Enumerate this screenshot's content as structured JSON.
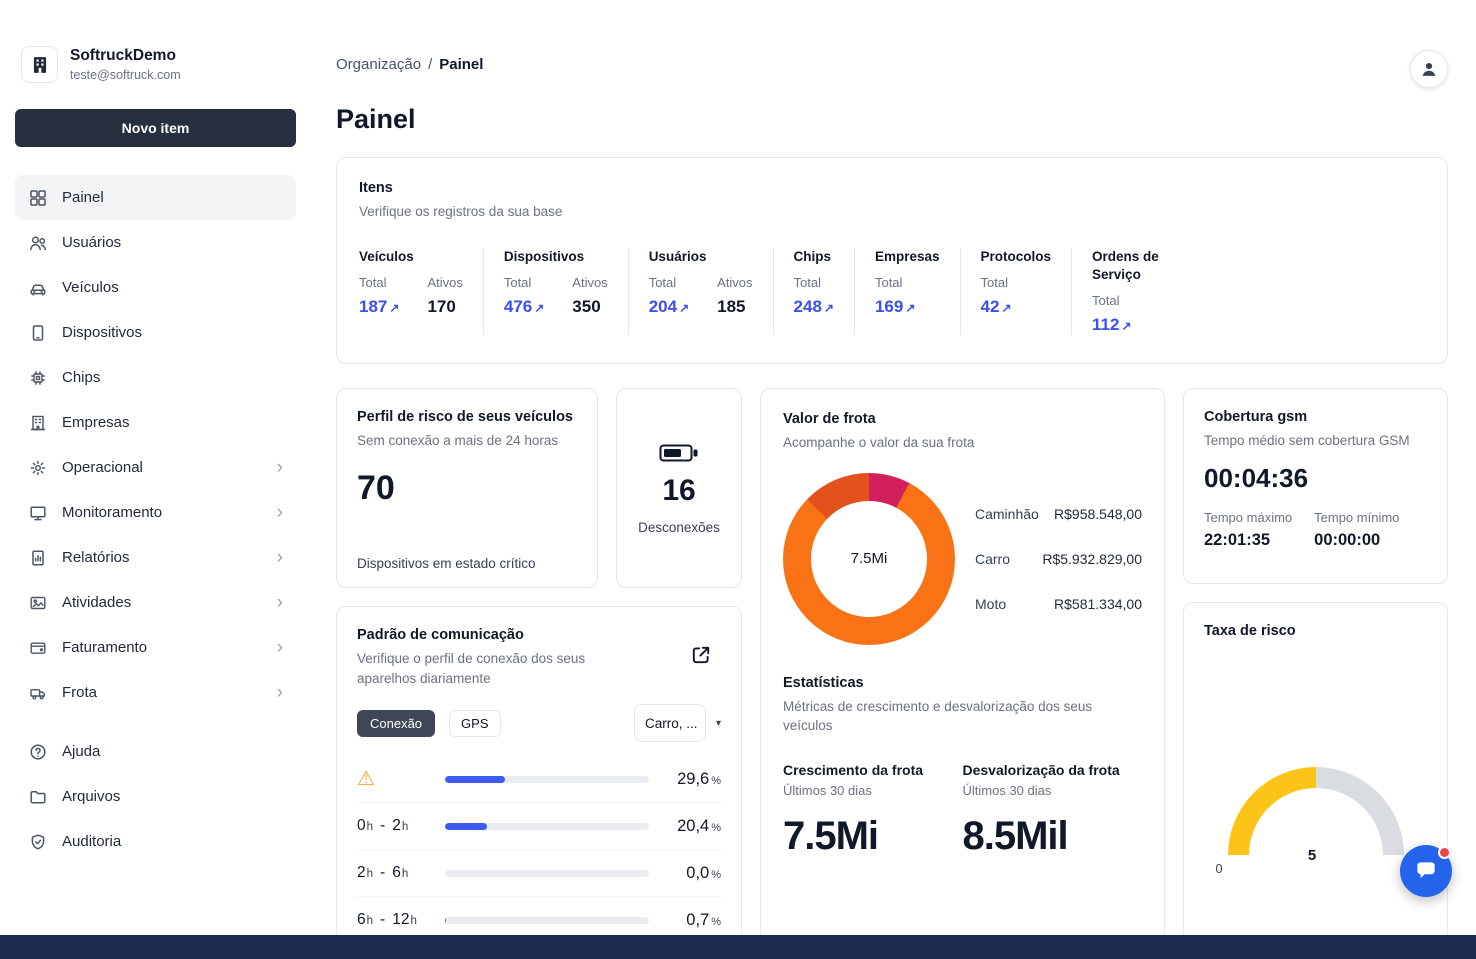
{
  "app": {
    "org_name": "SoftruckDemo",
    "org_email": "teste@softruck.com",
    "new_item_label": "Novo item"
  },
  "icons": {
    "arrow_up_right": "↗",
    "chevron_right": "›",
    "caret_down": "▾",
    "warning": "⚠"
  },
  "colors": {
    "accent_blue": "#3d4eeb",
    "bar_fill_blue": "#3d5af1",
    "button_dark": "#27303f",
    "footer_navy": "#1d2b4e",
    "chat_blue": "#2563eb",
    "warning_amber": "#f5a623"
  },
  "sidebar": {
    "items": [
      {
        "label": "Painel",
        "icon": "grid-icon",
        "selected": true
      },
      {
        "label": "Usuários",
        "icon": "users-icon"
      },
      {
        "label": "Veículos",
        "icon": "car-icon"
      },
      {
        "label": "Dispositivos",
        "icon": "device-icon"
      },
      {
        "label": "Chips",
        "icon": "chip-icon"
      },
      {
        "label": "Empresas",
        "icon": "building-icon"
      },
      {
        "label": "Operacional",
        "icon": "gear-icon",
        "chevron": true
      },
      {
        "label": "Monitoramento",
        "icon": "monitor-icon",
        "chevron": true
      },
      {
        "label": "Relatórios",
        "icon": "report-icon",
        "chevron": true
      },
      {
        "label": "Atividades",
        "icon": "image-icon",
        "chevron": true
      },
      {
        "label": "Faturamento",
        "icon": "wallet-icon",
        "chevron": true
      },
      {
        "label": "Frota",
        "icon": "truck-icon",
        "chevron": true
      },
      {
        "label": "Ajuda",
        "icon": "help-icon"
      },
      {
        "label": "Arquivos",
        "icon": "folder-icon"
      },
      {
        "label": "Auditoria",
        "icon": "shield-icon"
      }
    ]
  },
  "header": {
    "breadcrumb_parent": "Organização",
    "breadcrumb_separator": "/",
    "breadcrumb_current": "Painel",
    "title": "Painel"
  },
  "itens_card": {
    "title": "Itens",
    "subtitle": "Verifique os registros da sua base",
    "total_label": "Total",
    "ativos_label": "Ativos",
    "stats": [
      {
        "label": "Veículos",
        "total": "187",
        "ativos": "170"
      },
      {
        "label": "Dispositivos",
        "total": "476",
        "ativos": "350"
      },
      {
        "label": "Usuários",
        "total": "204",
        "ativos": "185"
      },
      {
        "label": "Chips",
        "total": "248"
      },
      {
        "label": "Empresas",
        "total": "169"
      },
      {
        "label": "Protocolos",
        "total": "42"
      },
      {
        "label": "Ordens de Serviço",
        "total": "112"
      }
    ]
  },
  "risk_card": {
    "title": "Perfil de risco de seus veículos",
    "subtitle": "Sem conexão a mais de 24 horas",
    "value": "70",
    "footer": "Dispositivos em estado crítico"
  },
  "disconnect_card": {
    "value": "16",
    "label": "Desconexões"
  },
  "fleet_value_card": {
    "title": "Valor de frota",
    "subtitle": "Acompanhe o valor da sua frota",
    "center": "7.5Mi",
    "legend": [
      {
        "label": "Caminhão",
        "value": "R$958.548,00"
      },
      {
        "label": "Carro",
        "value": "R$5.932.829,00"
      },
      {
        "label": "Moto",
        "value": "R$581.334,00"
      }
    ],
    "stats_title": "Estatísticas",
    "stats_subtitle": "Métricas de crescimento e desvalorização dos seus veículos",
    "growth": {
      "title": "Crescimento da frota",
      "period": "Últimos 30 dias",
      "value": "7.5Mi"
    },
    "devaluation": {
      "title": "Desvalorização da frota",
      "period": "Últimos 30 dias",
      "value": "8.5Mil"
    }
  },
  "gsm_card": {
    "title": "Cobertura gsm",
    "subtitle": "Tempo médio sem cobertura GSM",
    "value": "00:04:36",
    "max_label": "Tempo máximo",
    "max_value": "22:01:35",
    "min_label": "Tempo mínimo",
    "min_value": "00:00:00"
  },
  "risk_rate_card": {
    "title": "Taxa de risco",
    "value": "5",
    "min": "0",
    "max": "10"
  },
  "comm_card": {
    "title": "Padrão de comunicação",
    "subtitle": "Verifique o perfil de conexão dos seus aparelhos diariamente",
    "tabs": [
      {
        "label": "Conexão",
        "selected": true
      },
      {
        "label": "GPS",
        "selected": false
      }
    ],
    "filter_value": "Carro, ...",
    "hour_unit": "h",
    "range_separator": "-",
    "percent_unit": "%",
    "rows": [
      {
        "type": "warning",
        "percent": 29.6,
        "display": "29,6"
      },
      {
        "type": "range",
        "from": "0",
        "to": "2",
        "percent": 20.4,
        "display": "20,4"
      },
      {
        "type": "range",
        "from": "2",
        "to": "6",
        "percent": 0.0,
        "display": "0,0"
      },
      {
        "type": "range",
        "from": "6",
        "to": "12",
        "percent": 0.7,
        "display": "0,7"
      }
    ]
  },
  "chart_data": [
    {
      "type": "pie",
      "title": "Valor de frota",
      "labels": [
        "Caminhão",
        "Carro",
        "Moto"
      ],
      "values": [
        958548.0,
        5932829.0,
        581334.0
      ],
      "display_values": [
        "R$958.548,00",
        "R$5.932.829,00",
        "R$581.334,00"
      ],
      "center_label": "7.5Mi",
      "colors": [
        "#e2511b",
        "#f97316",
        "#d21f5e"
      ],
      "render_order": [
        2,
        1,
        0
      ],
      "legend_position": "right"
    },
    {
      "type": "gauge",
      "title": "Taxa de risco",
      "value": 5,
      "min": 0,
      "max": 10,
      "colors": {
        "fill": "#fcc419",
        "track": "#d9dce1"
      }
    },
    {
      "type": "bar",
      "title": "Padrão de comunicação",
      "categories": [
        "sem conexão (alerta)",
        "0h - 2h",
        "2h - 6h",
        "6h - 12h"
      ],
      "values": [
        29.6,
        20.4,
        0.0,
        0.7
      ],
      "unit": "%",
      "xlim": [
        0,
        100
      ]
    }
  ]
}
